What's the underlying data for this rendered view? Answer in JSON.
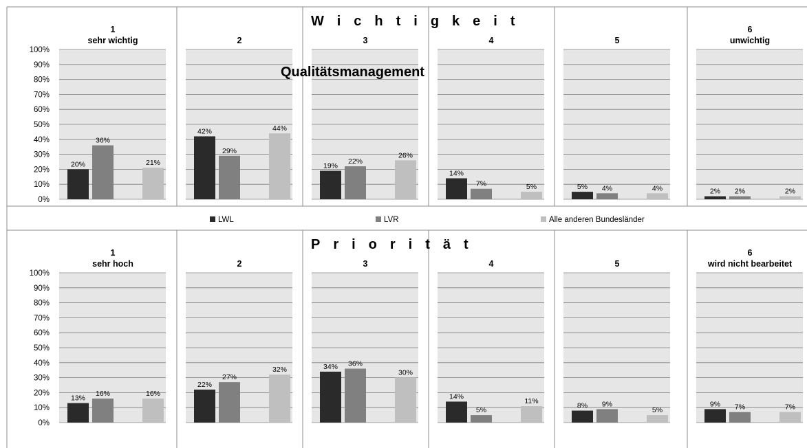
{
  "colors": {
    "LWL": "#2a2a2a",
    "LVR": "#808080",
    "Alle anderen Bundesländer": "#bfbfbf",
    "plot_bg": "#e6e6e6",
    "grid": "#7f7f7f",
    "border": "#8c8c8c"
  },
  "legend": [
    "LWL",
    "LVR",
    "Alle anderen Bundesländer"
  ],
  "chart_data": [
    {
      "type": "bar",
      "title": "Wichtigkeit",
      "subtitle": "Qualitätsmanagement",
      "y_ticks": [
        "0%",
        "10%",
        "20%",
        "30%",
        "40%",
        "50%",
        "60%",
        "70%",
        "80%",
        "90%",
        "100%"
      ],
      "ylim": [
        0,
        100
      ],
      "grid": true,
      "legend_position": "bottom",
      "panels": [
        {
          "head": [
            "1",
            "sehr wichtig"
          ],
          "series": [
            {
              "name": "LWL",
              "value": 20,
              "label": "20%"
            },
            {
              "name": "LVR",
              "value": 36,
              "label": "36%"
            },
            {
              "name": "Alle anderen Bundesländer",
              "value": 21,
              "label": "21%"
            }
          ]
        },
        {
          "head": [
            "2"
          ],
          "series": [
            {
              "name": "LWL",
              "value": 42,
              "label": "42%"
            },
            {
              "name": "LVR",
              "value": 29,
              "label": "29%"
            },
            {
              "name": "Alle anderen Bundesländer",
              "value": 44,
              "label": "44%"
            }
          ]
        },
        {
          "head": [
            "3"
          ],
          "series": [
            {
              "name": "LWL",
              "value": 19,
              "label": "19%"
            },
            {
              "name": "LVR",
              "value": 22,
              "label": "22%"
            },
            {
              "name": "Alle anderen Bundesländer",
              "value": 26,
              "label": "26%"
            }
          ]
        },
        {
          "head": [
            "4"
          ],
          "series": [
            {
              "name": "LWL",
              "value": 14,
              "label": "14%"
            },
            {
              "name": "LVR",
              "value": 7,
              "label": "7%"
            },
            {
              "name": "Alle anderen Bundesländer",
              "value": 5,
              "label": "5%"
            }
          ]
        },
        {
          "head": [
            "5"
          ],
          "series": [
            {
              "name": "LWL",
              "value": 5,
              "label": "5%"
            },
            {
              "name": "LVR",
              "value": 4,
              "label": "4%"
            },
            {
              "name": "Alle anderen Bundesländer",
              "value": 4,
              "label": "4%"
            }
          ]
        },
        {
          "head": [
            "6",
            "unwichtig"
          ],
          "series": [
            {
              "name": "LWL",
              "value": 2,
              "label": "2%"
            },
            {
              "name": "LVR",
              "value": 2,
              "label": "2%"
            },
            {
              "name": "Alle anderen Bundesländer",
              "value": 2,
              "label": "2%"
            }
          ]
        }
      ]
    },
    {
      "type": "bar",
      "title": "Priorität",
      "y_ticks": [
        "0%",
        "10%",
        "20%",
        "30%",
        "40%",
        "50%",
        "60%",
        "70%",
        "80%",
        "90%",
        "100%"
      ],
      "ylim": [
        0,
        100
      ],
      "grid": true,
      "panels": [
        {
          "head": [
            "1",
            "sehr hoch"
          ],
          "series": [
            {
              "name": "LWL",
              "value": 13,
              "label": "13%"
            },
            {
              "name": "LVR",
              "value": 16,
              "label": "16%"
            },
            {
              "name": "Alle anderen Bundesländer",
              "value": 16,
              "label": "16%"
            }
          ]
        },
        {
          "head": [
            "2"
          ],
          "series": [
            {
              "name": "LWL",
              "value": 22,
              "label": "22%"
            },
            {
              "name": "LVR",
              "value": 27,
              "label": "27%"
            },
            {
              "name": "Alle anderen Bundesländer",
              "value": 32,
              "label": "32%"
            }
          ]
        },
        {
          "head": [
            "3"
          ],
          "series": [
            {
              "name": "LWL",
              "value": 34,
              "label": "34%"
            },
            {
              "name": "LVR",
              "value": 36,
              "label": "36%"
            },
            {
              "name": "Alle anderen Bundesländer",
              "value": 30,
              "label": "30%"
            }
          ]
        },
        {
          "head": [
            "4"
          ],
          "series": [
            {
              "name": "LWL",
              "value": 14,
              "label": "14%"
            },
            {
              "name": "LVR",
              "value": 5,
              "label": "5%"
            },
            {
              "name": "Alle anderen Bundesländer",
              "value": 11,
              "label": "11%"
            }
          ]
        },
        {
          "head": [
            "5"
          ],
          "series": [
            {
              "name": "LWL",
              "value": 8,
              "label": "8%"
            },
            {
              "name": "LVR",
              "value": 9,
              "label": "9%"
            },
            {
              "name": "Alle anderen Bundesländer",
              "value": 5,
              "label": "5%"
            }
          ]
        },
        {
          "head": [
            "6",
            "wird nicht bearbeitet"
          ],
          "series": [
            {
              "name": "LWL",
              "value": 9,
              "label": "9%"
            },
            {
              "name": "LVR",
              "value": 7,
              "label": "7%"
            },
            {
              "name": "Alle anderen Bundesländer",
              "value": 7,
              "label": "7%"
            }
          ]
        }
      ]
    }
  ]
}
